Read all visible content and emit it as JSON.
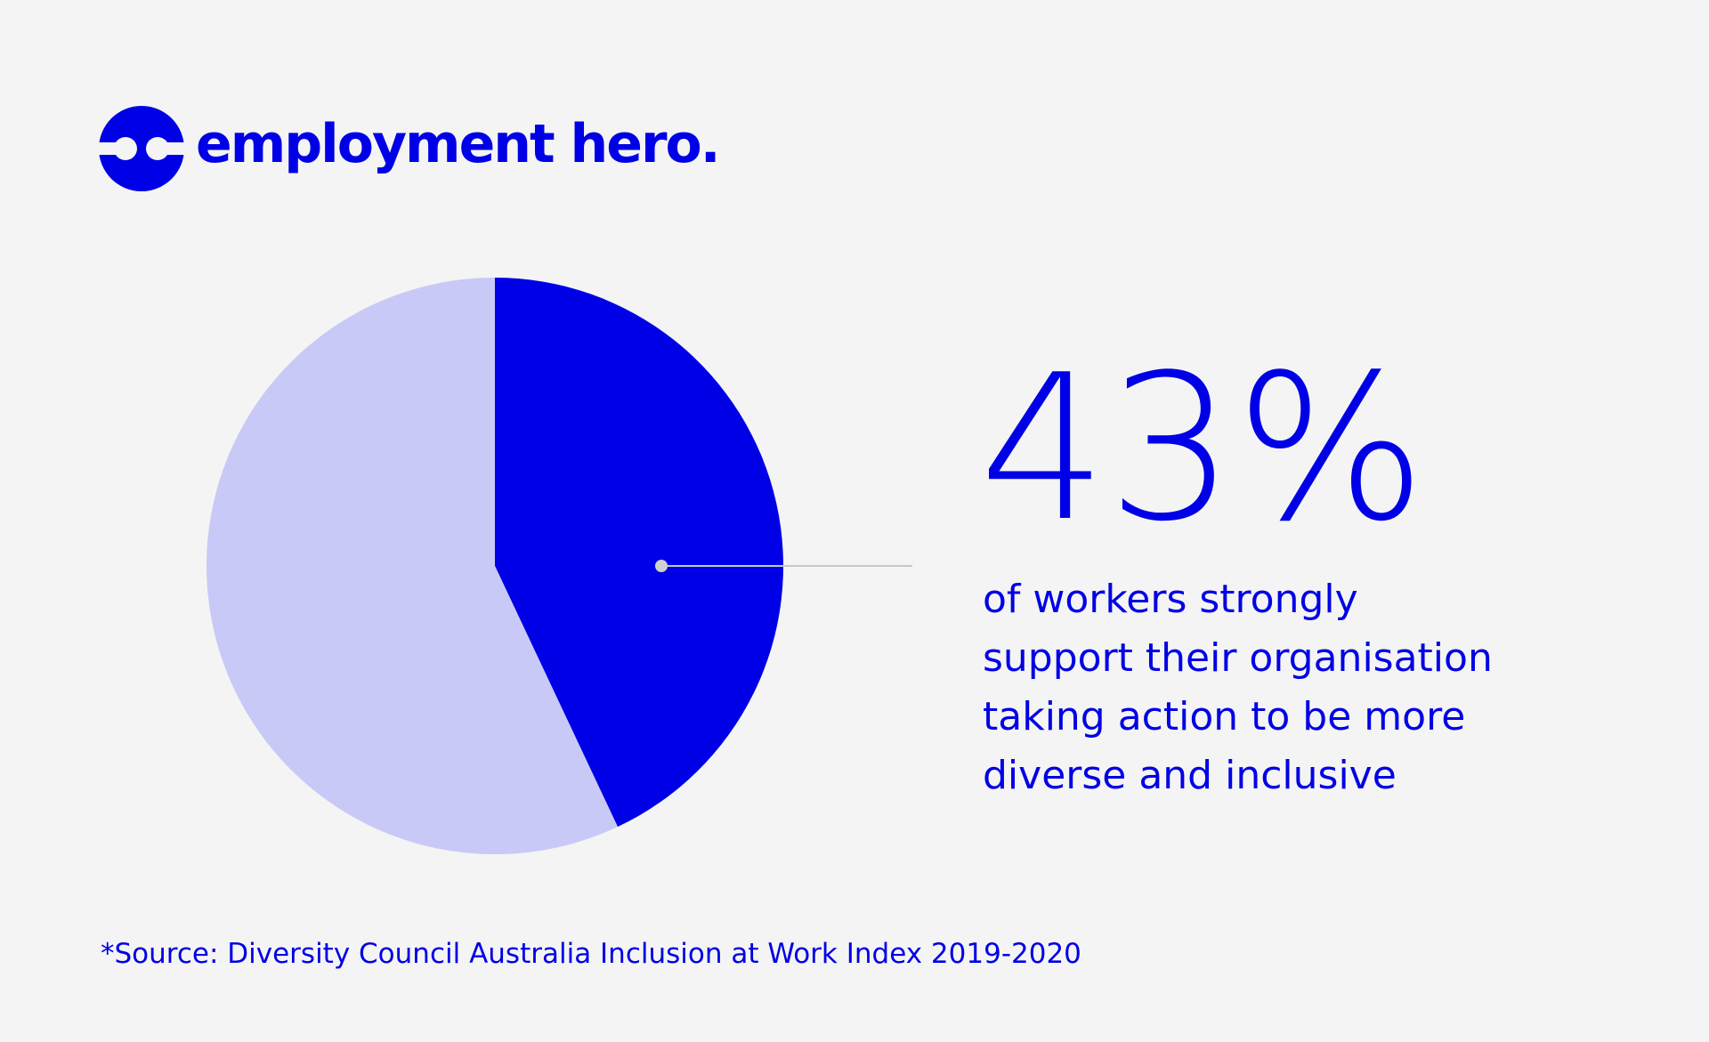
{
  "logo": "employment hero.",
  "chart_data": {
    "type": "pie",
    "values": [
      43,
      57
    ],
    "value_labels": [
      "43%",
      null
    ],
    "colors": [
      "#0000e6",
      "#c9c9f7"
    ],
    "annotation": [
      "of workers strongly",
      "support their organisation",
      "taking action to be more",
      "diverse and inclusive"
    ],
    "source": "*Source: Diversity Council Australia Inclusion at Work Index 2019-2020"
  }
}
